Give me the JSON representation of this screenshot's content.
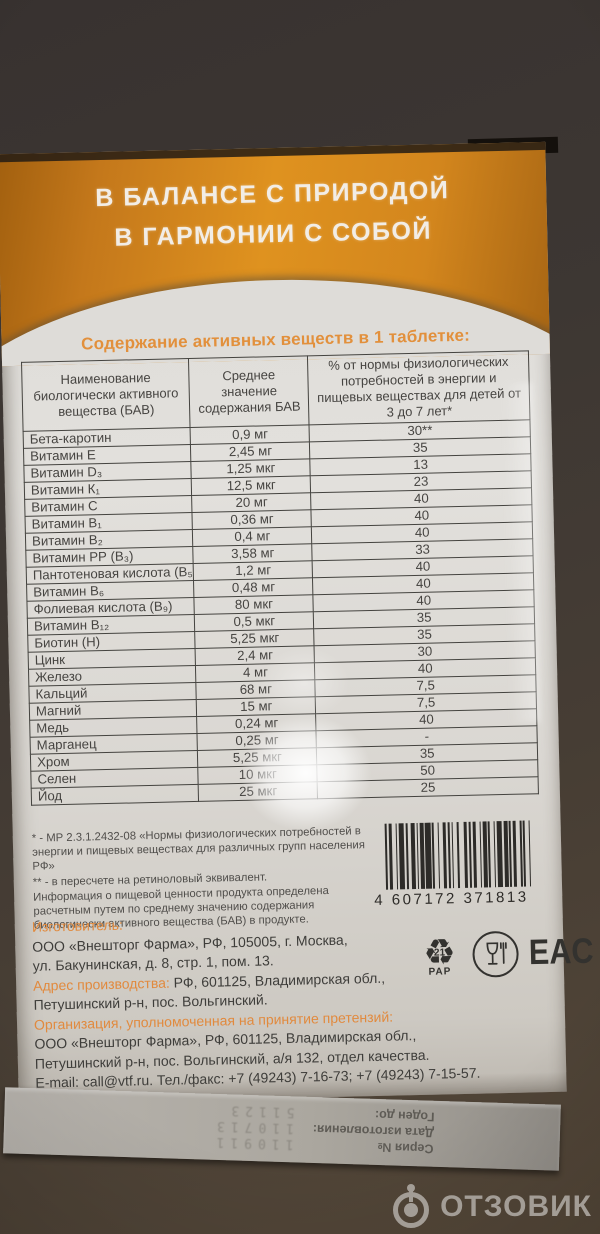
{
  "package": {
    "banner": {
      "line1": "В БАЛАНСЕ С ПРИРОДОЙ",
      "line2": "В ГАРМОНИИ С СОБОЙ"
    },
    "table_title": "Содержание активных веществ в 1 таблетке:",
    "table": {
      "headers": [
        "Наименование биологически активного вещества (БАВ)",
        "Среднее значение содержания БАВ",
        "% от нормы физиологических потребностей в энергии и пищевых веществах для детей от 3 до 7 лет*"
      ],
      "rows": [
        [
          "Бета-каротин",
          "0,9 мг",
          "30**"
        ],
        [
          "Витамин Е",
          "2,45 мг",
          "35"
        ],
        [
          "Витамин D₃",
          "1,25 мкг",
          "13"
        ],
        [
          "Витамин К₁",
          "12,5 мкг",
          "23"
        ],
        [
          "Витамин С",
          "20 мг",
          "40"
        ],
        [
          "Витамин В₁",
          "0,36 мг",
          "40"
        ],
        [
          "Витамин В₂",
          "0,4 мг",
          "40"
        ],
        [
          "Витамин РР (В₃)",
          "3,58 мг",
          "33"
        ],
        [
          "Пантотеновая кислота (В₅)",
          "1,2 мг",
          "40"
        ],
        [
          "Витамин В₆",
          "0,48 мг",
          "40"
        ],
        [
          "Фолиевая кислота (В₉)",
          "80 мкг",
          "40"
        ],
        [
          "Витамин В₁₂",
          "0,5 мкг",
          "35"
        ],
        [
          "Биотин (Н)",
          "5,25 мкг",
          "35"
        ],
        [
          "Цинк",
          "2,4 мг",
          "30"
        ],
        [
          "Железо",
          "4 мг",
          "40"
        ],
        [
          "Кальций",
          "68 мг",
          "7,5"
        ],
        [
          "Магний",
          "15 мг",
          "7,5"
        ],
        [
          "Медь",
          "0,24 мг",
          "40"
        ],
        [
          "Марганец",
          "0,25 мг",
          "-"
        ],
        [
          "Хром",
          "5,25 мкг",
          "35"
        ],
        [
          "Селен",
          "10 мкг",
          "50"
        ],
        [
          "Йод",
          "25 мкг",
          "25"
        ]
      ]
    },
    "footnotes": [
      "* - МР 2.3.1.2432-08 «Нормы физиологических потребностей в энергии и пищевых веществах для различных групп населения РФ»",
      "** - в пересчете на ретиноловый эквивалент.",
      "Информация о пищевой ценности продукта определена расчетным путем по среднему значению содержания биологически активного вещества (БАВ) в продукте."
    ],
    "barcode_digits": "4 607172 371813",
    "manufacturer": {
      "label": "Изготовитель:",
      "lines": [
        "ООО «Внешторг Фарма», РФ, 105005, г. Москва,",
        "ул. Бакунинская, д. 8, стр. 1, пом. 13."
      ]
    },
    "production_address": {
      "label": "Адрес производства:",
      "lines": [
        "РФ, 601125, Владимирская обл.,",
        "Петушинский р-н, пос. Вольгинский."
      ]
    },
    "claims_org": {
      "label": "Организация, уполномоченная на принятие претензий:",
      "lines": [
        "ООО «Внешторг Фарма», РФ, 601125, Владимирская обл.,",
        "Петушинский р-н, пос. Вольгинский, а/я 132, отдел качества."
      ]
    },
    "contact": "E-mail: call@vtf.ru. Тел./факс: +7 (49243) 7-16-73; +7 (49243) 7-15-57.",
    "marks": {
      "recycle_symbol": "♻",
      "recycle_code": "21",
      "recycle_material": "PAP",
      "eac": "EAC"
    },
    "flap": {
      "labels": [
        "Серия №",
        "Дата изготовления:",
        "Годен до:"
      ],
      "stamps": [
        "110911",
        "110713",
        "51123"
      ]
    }
  },
  "photo": {
    "watermark_text": "ОТЗОВИК"
  },
  "colors": {
    "accent_orange": "#df921f",
    "label_orange": "#e18a3e"
  }
}
